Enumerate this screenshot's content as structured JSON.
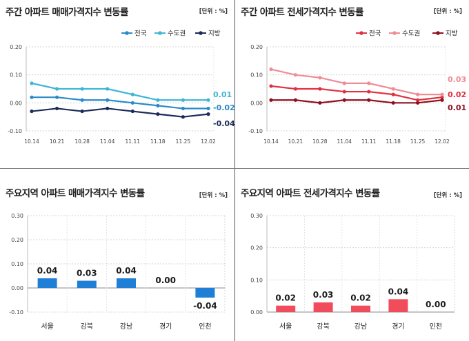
{
  "panels": {
    "p1": {
      "title": "주간 아파트 매매가격지수 변동률",
      "unit": "[단위 : %]"
    },
    "p2": {
      "title": "주간 아파트 전세가격지수 변동률",
      "unit": "[단위 : %]"
    },
    "p3": {
      "title": "주요지역 아파트 매매가격지수 변동률",
      "unit": "[단위 : %]"
    },
    "p4": {
      "title": "주요지역 아파트 전세가격지수 변동률",
      "unit": "[단위 : %]"
    }
  },
  "chart_data": [
    {
      "type": "line",
      "title": "주간 아파트 매매가격지수 변동률",
      "unit": "[단위 : %]",
      "x": [
        "10.14",
        "10.21",
        "10.28",
        "11.04",
        "11.11",
        "11.18",
        "11.25",
        "12.02"
      ],
      "series": [
        {
          "name": "전국",
          "color": "#2b8ac9",
          "values": [
            0.02,
            0.02,
            0.01,
            0.01,
            0.0,
            -0.01,
            -0.02,
            -0.02
          ],
          "end_label": "-0.02"
        },
        {
          "name": "수도권",
          "color": "#3fb6d6",
          "values": [
            0.07,
            0.05,
            0.05,
            0.05,
            0.03,
            0.01,
            0.01,
            0.01
          ],
          "end_label": "0.01"
        },
        {
          "name": "지방",
          "color": "#1b2a59",
          "values": [
            -0.03,
            -0.02,
            -0.03,
            -0.02,
            -0.03,
            -0.04,
            -0.05,
            -0.04
          ],
          "end_label": "-0.04"
        }
      ],
      "yticks": [
        "0.20",
        "0.10",
        "0.00",
        "-0.10"
      ],
      "ylim": [
        -0.1,
        0.2
      ],
      "legend": "top-right"
    },
    {
      "type": "line",
      "title": "주간 아파트 전세가격지수 변동률",
      "unit": "[단위 : %]",
      "x": [
        "10.14",
        "10.21",
        "10.28",
        "11.04",
        "11.11",
        "11.18",
        "11.25",
        "12.02"
      ],
      "series": [
        {
          "name": "전국",
          "color": "#e0313f",
          "values": [
            0.06,
            0.05,
            0.05,
            0.04,
            0.04,
            0.03,
            0.01,
            0.02
          ],
          "end_label": "0.02"
        },
        {
          "name": "수도권",
          "color": "#f08c94",
          "values": [
            0.12,
            0.1,
            0.09,
            0.07,
            0.07,
            0.05,
            0.03,
            0.03
          ],
          "end_label": "0.03"
        },
        {
          "name": "지방",
          "color": "#8e1020",
          "values": [
            0.01,
            0.01,
            0.0,
            0.01,
            0.01,
            0.0,
            0.0,
            0.01
          ],
          "end_label": "0.01"
        }
      ],
      "yticks": [
        "0.20",
        "0.10",
        "0.00",
        "-0.10"
      ],
      "ylim": [
        -0.1,
        0.2
      ],
      "legend": "top-right"
    },
    {
      "type": "bar",
      "title": "주요지역 아파트 매매가격지수 변동률",
      "unit": "[단위 : %]",
      "categories": [
        "서울",
        "강북",
        "강남",
        "경기",
        "인천"
      ],
      "values": [
        0.04,
        0.03,
        0.04,
        0.0,
        -0.04
      ],
      "labels": [
        "0.04",
        "0.03",
        "0.04",
        "0.00",
        "-0.04"
      ],
      "yticks": [
        "0.30",
        "0.20",
        "0.10",
        "0.00",
        "-0.10"
      ],
      "ylim": [
        -0.1,
        0.3
      ],
      "color": "#1f7fd6"
    },
    {
      "type": "bar",
      "title": "주요지역 아파트 전세가격지수 변동률",
      "unit": "[단위 : %]",
      "categories": [
        "서울",
        "강북",
        "강남",
        "경기",
        "인천"
      ],
      "values": [
        0.02,
        0.03,
        0.02,
        0.04,
        0.0
      ],
      "labels": [
        "0.02",
        "0.03",
        "0.02",
        "0.04",
        "0.00"
      ],
      "yticks": [
        "0.30",
        "0.20",
        "0.10",
        "0.00"
      ],
      "ylim": [
        0.0,
        0.3
      ],
      "color": "#f04c5c"
    }
  ]
}
